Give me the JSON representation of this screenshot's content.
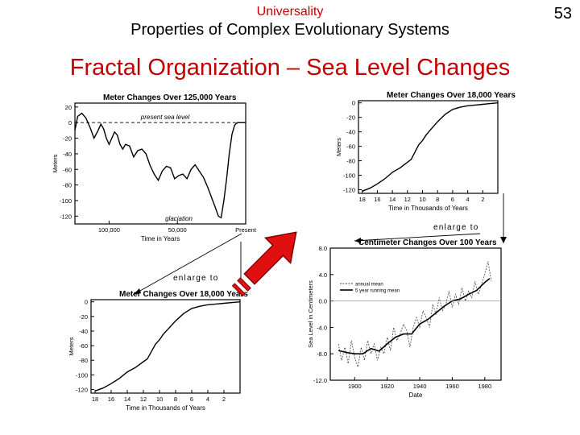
{
  "slide": {
    "section": "Universality",
    "subtitle": "Properties of Complex Evolutionary Systems",
    "page_number": "53",
    "title": "Fractal Organization – Sea Level Changes",
    "enlarge_label": "enlarge to",
    "colors": {
      "title": "#c00000",
      "arrow_fill": "#e01010",
      "arrow_stroke": "#800000",
      "plot": "#000000"
    }
  },
  "chart_data": [
    {
      "type": "line",
      "title": "Meter Changes Over 125,000 Years",
      "xlabel": "Time in Years",
      "ylabel": "Meters",
      "x_ticks": [
        "100,000",
        "50,000",
        "Present"
      ],
      "y_ticks": [
        20,
        0,
        -20,
        -40,
        -60,
        -80,
        -100,
        -120
      ],
      "ylim": [
        -130,
        25
      ],
      "annotations": [
        "present sea level",
        "glaciation"
      ],
      "series": [
        {
          "x": [
            125000,
            123000,
            120000,
            117000,
            114000,
            111000,
            108000,
            106000,
            104000,
            102000,
            100000,
            98000,
            96000,
            94000,
            92000,
            90000,
            88000,
            85000,
            82000,
            79000,
            76000,
            73000,
            70000,
            67000,
            64000,
            61000,
            58000,
            55000,
            52000,
            49000,
            46000,
            43000,
            40000,
            37000,
            34000,
            31000,
            28000,
            25000,
            22000,
            20000,
            18000,
            16000,
            14000,
            12000,
            10000,
            8000,
            6000,
            0
          ],
          "y": [
            -10,
            8,
            12,
            6,
            -6,
            -20,
            -10,
            -2,
            -8,
            -20,
            -28,
            -20,
            -12,
            -16,
            -28,
            -34,
            -28,
            -30,
            -44,
            -36,
            -34,
            -40,
            -55,
            -66,
            -74,
            -62,
            -56,
            -58,
            -72,
            -68,
            -66,
            -72,
            -60,
            -54,
            -62,
            -70,
            -82,
            -96,
            -110,
            -120,
            -122,
            -100,
            -72,
            -40,
            -15,
            -3,
            0,
            0
          ]
        }
      ]
    },
    {
      "type": "line",
      "title": "Meter Changes Over 18,000 Years",
      "xlabel": "Time in Thousands of Years",
      "ylabel": "Meters",
      "x_ticks": [
        18,
        16,
        14,
        12,
        10,
        8,
        6,
        4,
        2
      ],
      "y_ticks": [
        0,
        -20,
        -40,
        -60,
        -80,
        -100,
        -120
      ],
      "ylim": [
        -125,
        3
      ],
      "series": [
        {
          "x": [
            18,
            17,
            16,
            15,
            14,
            13,
            12,
            11.5,
            11,
            10.5,
            10,
            9.5,
            9,
            8,
            7,
            6,
            5,
            4,
            3,
            2,
            1,
            0
          ],
          "y": [
            -122,
            -118,
            -112,
            -105,
            -96,
            -90,
            -82,
            -78,
            -68,
            -58,
            -52,
            -44,
            -38,
            -26,
            -16,
            -9,
            -6,
            -4,
            -3,
            -2,
            -1,
            0
          ]
        }
      ]
    },
    {
      "type": "line",
      "title": "Meter Changes Over 18,000 Years",
      "xlabel": "Time in Thousands of Years",
      "ylabel": "Meters",
      "x_ticks": [
        18,
        16,
        14,
        12,
        10,
        8,
        6,
        4,
        2
      ],
      "y_ticks": [
        0,
        -20,
        -40,
        -60,
        -80,
        -100,
        -120
      ],
      "ylim": [
        -125,
        3
      ],
      "series": [
        {
          "x": [
            18,
            17,
            16,
            15,
            14,
            13,
            12,
            11.5,
            11,
            10.5,
            10,
            9.5,
            9,
            8,
            7,
            6,
            5,
            4,
            3,
            2,
            1,
            0
          ],
          "y": [
            -122,
            -118,
            -112,
            -105,
            -96,
            -90,
            -82,
            -78,
            -68,
            -58,
            -52,
            -44,
            -38,
            -26,
            -16,
            -9,
            -6,
            -4,
            -3,
            -2,
            -1,
            0
          ]
        }
      ]
    },
    {
      "type": "line",
      "title": "Centimeter Changes Over 100 Years",
      "xlabel": "Date",
      "ylabel": "Sea Level in Centimeters",
      "x_ticks": [
        1900,
        1920,
        1940,
        1960,
        1980
      ],
      "y_ticks": [
        8.0,
        4.0,
        0,
        -4.0,
        -8.0,
        -12.0
      ],
      "xlim": [
        1885,
        1990
      ],
      "ylim": [
        -12,
        8
      ],
      "legend": [
        "annual mean",
        "5 year running mean"
      ],
      "legend_position": "top-left",
      "series": [
        {
          "name": "annual mean",
          "x": [
            1890,
            1892,
            1894,
            1896,
            1898,
            1900,
            1902,
            1904,
            1906,
            1908,
            1910,
            1912,
            1914,
            1916,
            1918,
            1920,
            1922,
            1924,
            1926,
            1928,
            1930,
            1932,
            1934,
            1936,
            1938,
            1940,
            1942,
            1944,
            1946,
            1948,
            1950,
            1952,
            1954,
            1956,
            1958,
            1960,
            1962,
            1964,
            1966,
            1968,
            1970,
            1972,
            1974,
            1976,
            1978,
            1980,
            1982,
            1984
          ],
          "y": [
            -6.5,
            -9,
            -7,
            -9.5,
            -6,
            -8.5,
            -10,
            -7,
            -9,
            -6,
            -8,
            -6.5,
            -9,
            -7,
            -8,
            -5.5,
            -7.5,
            -4,
            -6,
            -5,
            -3.5,
            -4.5,
            -7,
            -4,
            -2.5,
            -4,
            -1.5,
            -2.5,
            -4,
            -0.5,
            -2,
            0.5,
            -1.5,
            -0.5,
            1.5,
            -1,
            1,
            -0.5,
            2,
            0,
            1.5,
            0.5,
            3,
            1,
            2.5,
            4,
            6,
            3
          ]
        },
        {
          "name": "5 year running mean",
          "x": [
            1890,
            1895,
            1900,
            1905,
            1910,
            1915,
            1920,
            1925,
            1930,
            1935,
            1940,
            1945,
            1950,
            1955,
            1960,
            1965,
            1970,
            1975,
            1980,
            1983
          ],
          "y": [
            -7.5,
            -7.8,
            -8,
            -8,
            -7.2,
            -7.6,
            -6.5,
            -5.5,
            -5,
            -5,
            -3.5,
            -2.8,
            -1.8,
            -0.8,
            0,
            0.3,
            1,
            1.6,
            2.8,
            3.4
          ]
        }
      ]
    }
  ]
}
